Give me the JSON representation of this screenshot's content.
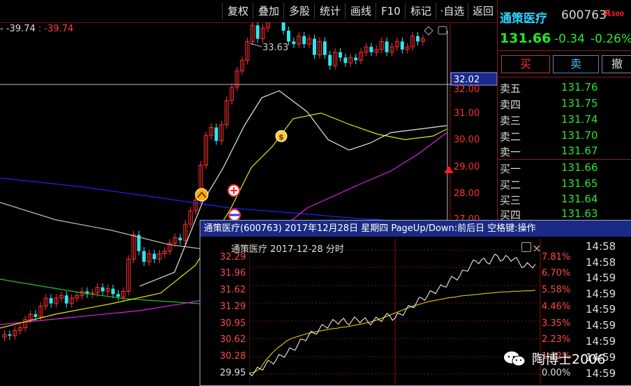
{
  "toolbar": {
    "buttons": [
      "复权",
      "叠加",
      "多股",
      "统计",
      "画线",
      "F10",
      "标记",
      "·自选",
      "返回"
    ]
  },
  "indicator": {
    "prefix": "- ",
    "value1": "-39.74",
    "sep": " : ",
    "value2": "-39.74"
  },
  "main_chart": {
    "high_label": "33.63",
    "price_axis": [
      "32.00",
      "31.00",
      "30.00",
      "29.00",
      "28.00",
      "27.00"
    ],
    "crosshair_value": "32.02",
    "colors": {
      "up": "#ff3030",
      "down": "#2ee6f0",
      "ma1": "#e8e8e8",
      "ma2": "#e6e600",
      "ma3": "#e020e0",
      "ma4": "#2020ff",
      "ma5": "#20c020"
    }
  },
  "quote": {
    "name": "通策医疗",
    "code": "600763",
    "badge_r": "R",
    "badge_num": "300",
    "price": "131.66",
    "change": "-0.34",
    "change_pct": "-0.26%",
    "buy_label": "买",
    "sell_label": "卖",
    "cancel_label": "撤"
  },
  "order_book": {
    "asks": [
      {
        "label": "卖五",
        "price": "131.76"
      },
      {
        "label": "卖四",
        "price": "131.75"
      },
      {
        "label": "卖三",
        "price": "131.74"
      },
      {
        "label": "卖二",
        "price": "131.70"
      },
      {
        "label": "卖一",
        "price": "131.67"
      }
    ],
    "bids": [
      {
        "label": "买一",
        "price": "131.66"
      },
      {
        "label": "买二",
        "price": "131.65"
      },
      {
        "label": "买三",
        "price": "131.64"
      },
      {
        "label": "买四",
        "price": "131.63"
      }
    ]
  },
  "popup": {
    "title": "通策医疗(600763) 2017年12月28日 星期四 PageUp/Down:前后日 空格键:操作",
    "subtitle": "通策医疗   2017-12-28 分时",
    "price_labels": [
      "32.29",
      "31.96",
      "31.62",
      "31.29",
      "30.95",
      "30.62",
      "30.28",
      "29.95"
    ],
    "pct_labels": [
      "7.81%",
      "6.70%",
      "5.58%",
      "4.46%",
      "3.35%",
      "2.23%",
      "1.12%",
      "0.00%"
    ],
    "times": [
      "14:58",
      "14:58",
      "14:59",
      "14:59",
      "14:59",
      "14:59",
      "14:59",
      "14:59",
      "14:59"
    ],
    "price_line": [
      29.97,
      29.99,
      30.05,
      30.12,
      30.18,
      30.22,
      30.3,
      30.35,
      30.42,
      30.5,
      30.6,
      30.68,
      30.72,
      30.8,
      30.85,
      30.9,
      30.94,
      30.96,
      30.92,
      30.95,
      30.98,
      30.97,
      30.93,
      30.95,
      30.98,
      31.02,
      31.05,
      31.0,
      31.08,
      31.15,
      31.22,
      31.3,
      31.38,
      31.42,
      31.5,
      31.55,
      31.6,
      31.7,
      31.76,
      31.8,
      31.9,
      32.0,
      32.08,
      32.1,
      32.05,
      32.12,
      32.18,
      32.1,
      32.15,
      32.12,
      32.05,
      31.98,
      32.0,
      32.02
    ],
    "avg_line": [
      29.97,
      29.99,
      30.05,
      30.2,
      30.32,
      30.42,
      30.5,
      30.58,
      30.63,
      30.66,
      30.69,
      30.72,
      30.74,
      30.76,
      30.78,
      30.8,
      30.81,
      30.83,
      30.84,
      30.86,
      30.88,
      30.9,
      30.92,
      30.95,
      30.98,
      31.02,
      31.06,
      31.1,
      31.14,
      31.18,
      31.22,
      31.25,
      31.28,
      31.31,
      31.33,
      31.35,
      31.37,
      31.39,
      31.4,
      31.42,
      31.43,
      31.44,
      31.45,
      31.46,
      31.47,
      31.48,
      31.49,
      31.5,
      31.5,
      31.51,
      31.51,
      31.52,
      31.52,
      31.53
    ]
  },
  "watermark": {
    "text": "陶博士2006"
  }
}
